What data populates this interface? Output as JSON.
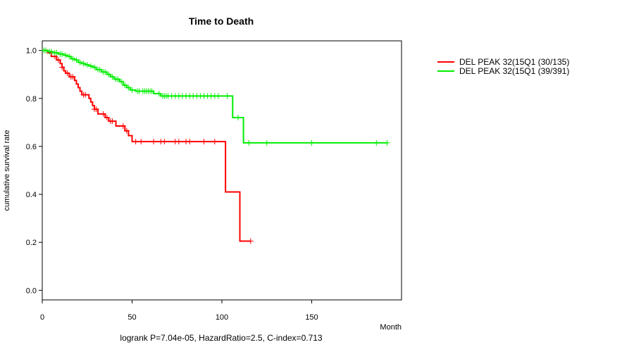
{
  "chart_data": {
    "type": "line",
    "title": "Time to Death",
    "xlabel": "Month",
    "ylabel": "cumulative survival rate",
    "xlim": [
      0,
      200
    ],
    "ylim": [
      -0.04,
      1.04
    ],
    "x_ticks": [
      0,
      50,
      100,
      150
    ],
    "x_tick_labels": [
      "0",
      "50",
      "100",
      "150"
    ],
    "y_ticks": [
      0.0,
      0.2,
      0.4,
      0.6,
      0.8,
      1.0
    ],
    "y_tick_labels": [
      "0.0",
      "0.2",
      "0.4",
      "0.6",
      "0.8",
      "1.0"
    ],
    "footer": "logrank P=7.04e-05, HazardRatio=2.5, C-index=0.713",
    "legend_position": "top-right outside",
    "series": [
      {
        "name": "DEL PEAK 32(15Q1 (30/135)",
        "color": "#ff0000",
        "steps": [
          [
            0,
            1.0
          ],
          [
            3,
            0.99
          ],
          [
            5,
            0.975
          ],
          [
            8,
            0.96
          ],
          [
            10,
            0.945
          ],
          [
            11,
            0.93
          ],
          [
            12,
            0.915
          ],
          [
            13,
            0.905
          ],
          [
            15,
            0.89
          ],
          [
            18,
            0.875
          ],
          [
            19,
            0.86
          ],
          [
            20,
            0.845
          ],
          [
            21,
            0.83
          ],
          [
            22,
            0.815
          ],
          [
            26,
            0.8
          ],
          [
            27,
            0.785
          ],
          [
            28,
            0.77
          ],
          [
            29,
            0.755
          ],
          [
            31,
            0.735
          ],
          [
            35,
            0.72
          ],
          [
            37,
            0.705
          ],
          [
            41,
            0.685
          ],
          [
            46,
            0.665
          ],
          [
            48,
            0.645
          ],
          [
            50,
            0.62
          ],
          [
            102,
            0.41
          ],
          [
            110,
            0.205
          ],
          [
            116,
            0.205
          ]
        ],
        "censor_x": [
          7,
          9,
          11,
          14,
          16,
          17,
          23,
          24,
          29,
          30,
          34,
          36,
          38,
          39,
          45,
          47,
          52,
          55,
          62,
          66,
          68,
          74,
          76,
          80,
          82,
          90,
          96,
          116
        ]
      },
      {
        "name": "DEL PEAK 32(15Q1 (39/391)",
        "color": "#00ee00",
        "steps": [
          [
            0,
            1.0
          ],
          [
            3,
            0.995
          ],
          [
            6,
            0.99
          ],
          [
            9,
            0.985
          ],
          [
            12,
            0.98
          ],
          [
            14,
            0.975
          ],
          [
            16,
            0.965
          ],
          [
            18,
            0.96
          ],
          [
            20,
            0.95
          ],
          [
            22,
            0.945
          ],
          [
            24,
            0.94
          ],
          [
            26,
            0.935
          ],
          [
            28,
            0.93
          ],
          [
            30,
            0.92
          ],
          [
            33,
            0.91
          ],
          [
            36,
            0.9
          ],
          [
            38,
            0.89
          ],
          [
            40,
            0.88
          ],
          [
            43,
            0.87
          ],
          [
            45,
            0.855
          ],
          [
            47,
            0.845
          ],
          [
            49,
            0.835
          ],
          [
            52,
            0.83
          ],
          [
            62,
            0.82
          ],
          [
            66,
            0.81
          ],
          [
            106,
            0.72
          ],
          [
            112,
            0.615
          ],
          [
            192,
            0.615
          ]
        ],
        "censor_x": [
          1,
          2,
          4,
          5,
          7,
          8,
          10,
          11,
          13,
          15,
          17,
          19,
          21,
          23,
          25,
          27,
          29,
          31,
          32,
          34,
          35,
          37,
          39,
          41,
          42,
          44,
          46,
          48,
          50,
          53,
          54,
          56,
          57,
          58,
          59,
          60,
          61,
          65,
          67,
          68,
          69,
          70,
          72,
          74,
          76,
          78,
          80,
          82,
          84,
          86,
          88,
          90,
          92,
          94,
          96,
          98,
          103,
          109,
          115,
          125,
          150,
          186,
          192
        ]
      }
    ]
  }
}
